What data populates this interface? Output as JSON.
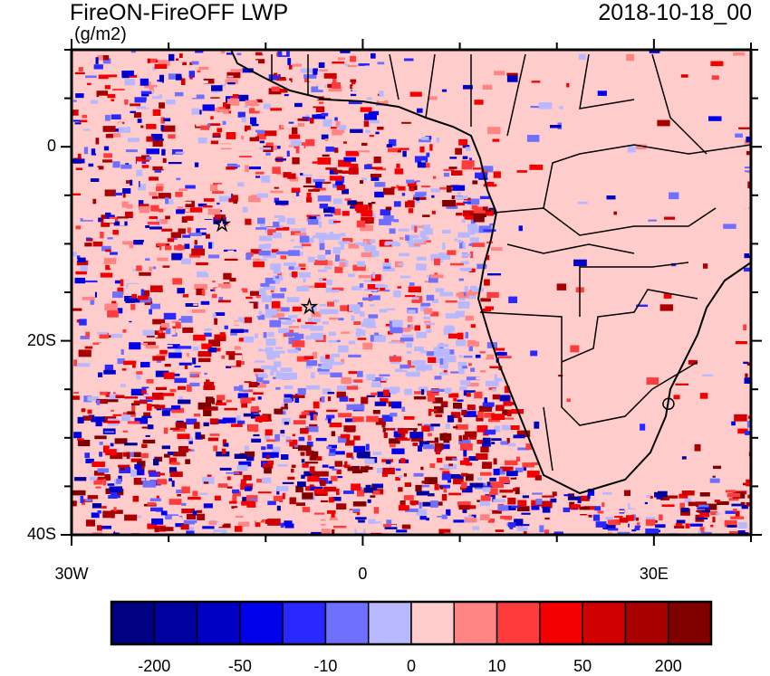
{
  "title": "FireON-FireOFF LWP",
  "units": "(g/m2)",
  "datetime": "2018-10-18_00",
  "map": {
    "lon_range": [
      -30,
      40
    ],
    "lat_range": [
      -40,
      10
    ],
    "background_color": "#ffcccc",
    "x_tick_labels": [
      {
        "lon": -30,
        "label": "30W"
      },
      {
        "lon": 0,
        "label": "0"
      },
      {
        "lon": 30,
        "label": "30E"
      }
    ],
    "y_tick_labels": [
      {
        "lat": 0,
        "label": "0"
      },
      {
        "lat": -20,
        "label": "20S"
      },
      {
        "lat": -40,
        "label": "40S"
      }
    ],
    "markers": [
      {
        "name": "star",
        "lon": -14.5,
        "lat": -8
      },
      {
        "name": "star",
        "lon": -5.5,
        "lat": -16.5
      },
      {
        "name": "circle",
        "lon": 31.5,
        "lat": -26.5
      }
    ]
  },
  "colorbar": {
    "colors": [
      "#000080",
      "#00009f",
      "#0000c4",
      "#0000ea",
      "#2828ff",
      "#7070ff",
      "#b8b8ff",
      "#ffcccc",
      "#ff8585",
      "#ff3c3c",
      "#f50000",
      "#d10000",
      "#a80000",
      "#800000"
    ],
    "labels": [
      {
        "boundary": 1,
        "label": "-200"
      },
      {
        "boundary": 3,
        "label": "-50"
      },
      {
        "boundary": 5,
        "label": "-10"
      },
      {
        "boundary": 7,
        "label": "0"
      },
      {
        "boundary": 9,
        "label": "10"
      },
      {
        "boundary": 11,
        "label": "50"
      },
      {
        "boundary": 13,
        "label": "200"
      }
    ]
  }
}
